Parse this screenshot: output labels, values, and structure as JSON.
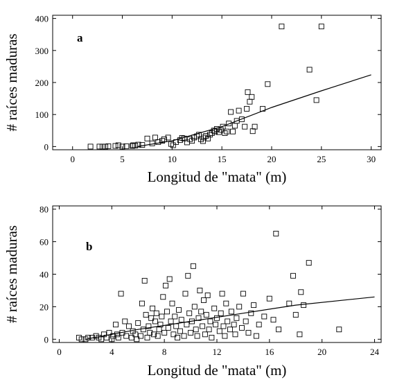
{
  "chart_data": [
    {
      "type": "scatter",
      "panel_label": "a",
      "xlabel": "Longitud de \"mata\" (m)",
      "ylabel": "# raíces maduras",
      "xlim": [
        -2,
        31
      ],
      "ylim": [
        -10,
        410
      ],
      "xticks": [
        0,
        5,
        10,
        15,
        20,
        25,
        30
      ],
      "yticks": [
        0,
        100,
        200,
        300,
        400
      ],
      "marker": "open-square",
      "grid": false,
      "points": [
        [
          1.8,
          0
        ],
        [
          2.7,
          0
        ],
        [
          3.0,
          0
        ],
        [
          3.3,
          0
        ],
        [
          3.6,
          1
        ],
        [
          4.3,
          2
        ],
        [
          4.6,
          4
        ],
        [
          5.0,
          0
        ],
        [
          5.4,
          1
        ],
        [
          6.0,
          2
        ],
        [
          6.1,
          4
        ],
        [
          6.3,
          3
        ],
        [
          6.6,
          6
        ],
        [
          7.0,
          5
        ],
        [
          7.5,
          25
        ],
        [
          8.0,
          10
        ],
        [
          8.3,
          28
        ],
        [
          8.6,
          14
        ],
        [
          9.0,
          18
        ],
        [
          9.2,
          23
        ],
        [
          9.6,
          28
        ],
        [
          9.9,
          8
        ],
        [
          10.1,
          4
        ],
        [
          10.4,
          14
        ],
        [
          10.8,
          20
        ],
        [
          11.0,
          27
        ],
        [
          11.2,
          25
        ],
        [
          11.5,
          13
        ],
        [
          11.8,
          23
        ],
        [
          12.0,
          18
        ],
        [
          12.2,
          28
        ],
        [
          12.5,
          32
        ],
        [
          12.7,
          37
        ],
        [
          12.9,
          23
        ],
        [
          13.1,
          17
        ],
        [
          13.2,
          28
        ],
        [
          13.4,
          33
        ],
        [
          13.6,
          25
        ],
        [
          13.8,
          37
        ],
        [
          14.0,
          42
        ],
        [
          14.2,
          50
        ],
        [
          14.3,
          47
        ],
        [
          14.5,
          55
        ],
        [
          14.7,
          45
        ],
        [
          14.9,
          52
        ],
        [
          15.1,
          62
        ],
        [
          15.3,
          42
        ],
        [
          15.5,
          47
        ],
        [
          15.7,
          72
        ],
        [
          15.9,
          108
        ],
        [
          16.1,
          47
        ],
        [
          16.3,
          65
        ],
        [
          16.5,
          80
        ],
        [
          16.7,
          112
        ],
        [
          17.0,
          85
        ],
        [
          17.3,
          62
        ],
        [
          17.5,
          118
        ],
        [
          17.6,
          170
        ],
        [
          17.8,
          140
        ],
        [
          18.0,
          155
        ],
        [
          18.1,
          48
        ],
        [
          18.3,
          62
        ],
        [
          19.1,
          118
        ],
        [
          19.6,
          195
        ],
        [
          21.0,
          375
        ],
        [
          23.8,
          240
        ],
        [
          24.5,
          145
        ],
        [
          25.0,
          375
        ]
      ],
      "fit_line": {
        "x": [
          6.5,
          10,
          15,
          20,
          25,
          30
        ],
        "y": [
          0,
          18,
          62,
          122,
          174,
          224
        ]
      }
    },
    {
      "type": "scatter",
      "panel_label": "b",
      "xlabel": "Longitud de \"mata\" (m)",
      "ylabel": "# raíces maduras",
      "xlim": [
        -0.5,
        24.5
      ],
      "ylim": [
        -2,
        82
      ],
      "xticks": [
        0,
        4,
        8,
        12,
        16,
        20,
        24
      ],
      "yticks": [
        0,
        20,
        40,
        60,
        80
      ],
      "marker": "open-square",
      "grid": false,
      "points": [
        [
          1.5,
          1
        ],
        [
          1.7,
          0
        ],
        [
          2.0,
          0
        ],
        [
          2.2,
          1
        ],
        [
          2.5,
          1
        ],
        [
          2.8,
          2
        ],
        [
          3.0,
          1
        ],
        [
          3.2,
          0
        ],
        [
          3.4,
          3
        ],
        [
          3.6,
          1
        ],
        [
          3.8,
          4
        ],
        [
          4.0,
          0
        ],
        [
          4.1,
          2
        ],
        [
          4.3,
          9
        ],
        [
          4.4,
          3
        ],
        [
          4.5,
          1
        ],
        [
          4.7,
          28
        ],
        [
          4.8,
          4
        ],
        [
          5.0,
          11
        ],
        [
          5.1,
          2
        ],
        [
          5.3,
          8
        ],
        [
          5.5,
          1
        ],
        [
          5.6,
          5
        ],
        [
          5.8,
          3
        ],
        [
          5.9,
          0
        ],
        [
          6.0,
          10
        ],
        [
          6.2,
          2
        ],
        [
          6.3,
          22
        ],
        [
          6.4,
          6
        ],
        [
          6.5,
          36
        ],
        [
          6.6,
          15
        ],
        [
          6.7,
          1
        ],
        [
          6.8,
          8
        ],
        [
          6.9,
          4
        ],
        [
          7.0,
          13
        ],
        [
          7.1,
          19
        ],
        [
          7.2,
          3
        ],
        [
          7.3,
          11
        ],
        [
          7.4,
          16
        ],
        [
          7.5,
          2
        ],
        [
          7.6,
          6
        ],
        [
          7.7,
          9
        ],
        [
          7.8,
          14
        ],
        [
          7.9,
          26
        ],
        [
          8.0,
          4
        ],
        [
          8.1,
          33
        ],
        [
          8.2,
          17
        ],
        [
          8.3,
          7
        ],
        [
          8.4,
          37
        ],
        [
          8.5,
          11
        ],
        [
          8.6,
          22
        ],
        [
          8.7,
          3
        ],
        [
          8.8,
          14
        ],
        [
          8.9,
          8
        ],
        [
          9.0,
          1
        ],
        [
          9.1,
          18
        ],
        [
          9.2,
          5
        ],
        [
          9.3,
          12
        ],
        [
          9.5,
          2
        ],
        [
          9.6,
          28
        ],
        [
          9.7,
          9
        ],
        [
          9.8,
          39
        ],
        [
          9.9,
          16
        ],
        [
          10.0,
          4
        ],
        [
          10.1,
          11
        ],
        [
          10.2,
          45
        ],
        [
          10.3,
          20
        ],
        [
          10.4,
          6
        ],
        [
          10.5,
          2
        ],
        [
          10.6,
          13
        ],
        [
          10.7,
          30
        ],
        [
          10.8,
          17
        ],
        [
          10.9,
          8
        ],
        [
          11.0,
          24
        ],
        [
          11.1,
          3
        ],
        [
          11.2,
          15
        ],
        [
          11.3,
          27
        ],
        [
          11.4,
          6
        ],
        [
          11.5,
          11
        ],
        [
          11.6,
          1
        ],
        [
          11.8,
          19
        ],
        [
          11.9,
          9
        ],
        [
          12.0,
          13
        ],
        [
          12.2,
          5
        ],
        [
          12.3,
          16
        ],
        [
          12.4,
          28
        ],
        [
          12.5,
          8
        ],
        [
          12.6,
          2
        ],
        [
          12.7,
          22
        ],
        [
          12.8,
          11
        ],
        [
          13.0,
          6
        ],
        [
          13.1,
          17
        ],
        [
          13.3,
          9
        ],
        [
          13.4,
          3
        ],
        [
          13.5,
          13
        ],
        [
          13.7,
          20
        ],
        [
          13.9,
          7
        ],
        [
          14.0,
          28
        ],
        [
          14.2,
          11
        ],
        [
          14.4,
          4
        ],
        [
          14.6,
          16
        ],
        [
          14.8,
          21
        ],
        [
          15.0,
          2
        ],
        [
          15.2,
          9
        ],
        [
          15.6,
          14
        ],
        [
          16.0,
          25
        ],
        [
          16.3,
          12
        ],
        [
          16.5,
          65
        ],
        [
          16.7,
          6
        ],
        [
          17.5,
          22
        ],
        [
          17.8,
          39
        ],
        [
          18.0,
          15
        ],
        [
          18.3,
          3
        ],
        [
          18.4,
          29
        ],
        [
          18.6,
          21
        ],
        [
          19.0,
          47
        ],
        [
          21.3,
          6
        ]
      ],
      "fit_line": {
        "x": [
          2.0,
          6,
          10,
          14,
          18,
          24
        ],
        "y": [
          0,
          6,
          11,
          16,
          21,
          26
        ]
      }
    }
  ]
}
